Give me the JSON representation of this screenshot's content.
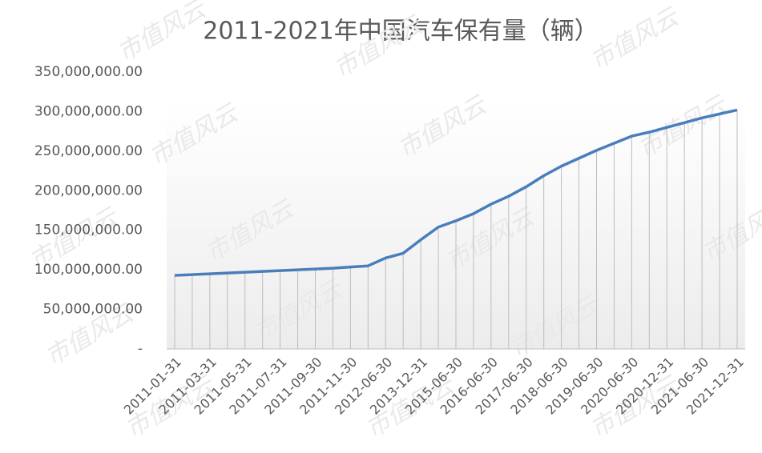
{
  "chart_data": {
    "type": "line",
    "title": "2011-2021年中国汽车保有量（辆）",
    "watermark": "市值风云",
    "categories": [
      "2011-01-31",
      null,
      "2011-03-31",
      null,
      "2011-05-31",
      null,
      "2011-07-31",
      null,
      "2011-09-30",
      null,
      "2011-11-30",
      null,
      "2012-06-30",
      null,
      "2013-12-31",
      null,
      "2015-06-30",
      null,
      "2016-06-30",
      null,
      "2017-06-30",
      null,
      "2018-06-30",
      null,
      "2019-06-30",
      null,
      "2020-06-30",
      null,
      "2020-12-31",
      null,
      "2021-06-30",
      null,
      "2021-12-31"
    ],
    "series": [
      {
        "color": "#4a7ebb",
        "values": [
          93000000,
          94000000,
          95000000,
          96000000,
          97000000,
          98000000,
          99000000,
          100000000,
          101000000,
          102000000,
          103500000,
          105000000,
          115000000,
          121000000,
          138000000,
          154000000,
          162000000,
          171000000,
          183000000,
          193000000,
          205000000,
          219000000,
          231000000,
          241000000,
          251000000,
          260000000,
          269000000,
          274000000,
          280000000,
          286000000,
          292000000,
          297000000,
          302000000
        ]
      }
    ],
    "ylim": [
      0,
      350000000
    ],
    "yticks": [
      {
        "value": 0,
        "label": "-"
      },
      {
        "value": 50000000,
        "label": "50,000,000.00"
      },
      {
        "value": 100000000,
        "label": "100,000,000.00"
      },
      {
        "value": 150000000,
        "label": "150,000,000.00"
      },
      {
        "value": 200000000,
        "label": "200,000,000.00"
      },
      {
        "value": 250000000,
        "label": "250,000,000.00"
      },
      {
        "value": 300000000,
        "label": "300,000,000.00"
      },
      {
        "value": 350000000,
        "label": "350,000,000.00"
      }
    ],
    "drop_lines": true
  }
}
